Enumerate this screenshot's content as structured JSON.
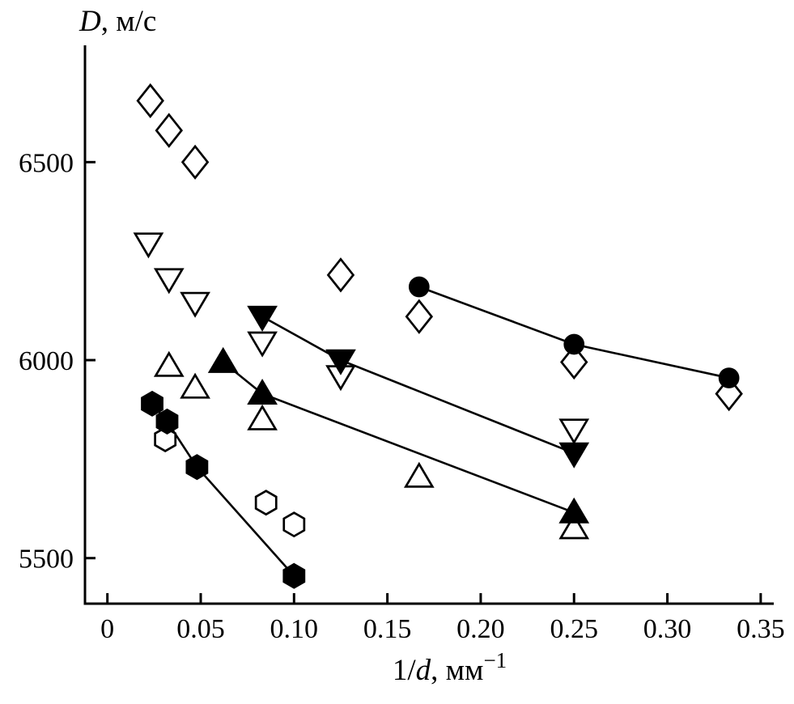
{
  "figure": {
    "background": "#ffffff",
    "ink_color": "#000000"
  },
  "chart_data": {
    "type": "scatter",
    "title": "",
    "xlabel": "1/d, мм⁻¹",
    "ylabel": "D, м/с",
    "xlabel_parts": {
      "pre": "1/",
      "var": "d",
      "rest": ", мм",
      "sup": "−1"
    },
    "ylabel_parts": {
      "var": "D",
      "rest": ", м/с"
    },
    "xlim": [
      -0.012,
      0.357
    ],
    "ylim": [
      5385,
      6795
    ],
    "xticks": [
      0,
      0.05,
      0.1,
      0.15,
      0.2,
      0.25,
      0.3,
      0.35
    ],
    "xtick_labels": [
      "0",
      "0.05",
      "0.10",
      "0.15",
      "0.20",
      "0.25",
      "0.30",
      "0.35"
    ],
    "yticks": [
      5500,
      6000,
      6500
    ],
    "ytick_labels": [
      "5500",
      "6000",
      "6500"
    ],
    "grid": false,
    "legend": "none",
    "series": [
      {
        "name": "open-diamond",
        "marker": "diamond",
        "fill": "open",
        "line": false,
        "points": [
          [
            0.023,
            6655
          ],
          [
            0.033,
            6580
          ],
          [
            0.047,
            6500
          ],
          [
            0.125,
            6215
          ],
          [
            0.167,
            6110
          ],
          [
            0.25,
            5995
          ],
          [
            0.333,
            5915
          ]
        ]
      },
      {
        "name": "open-triangle-down",
        "marker": "triangle-down",
        "fill": "open",
        "line": false,
        "points": [
          [
            0.022,
            6295
          ],
          [
            0.033,
            6205
          ],
          [
            0.047,
            6145
          ],
          [
            0.083,
            6045
          ],
          [
            0.125,
            5960
          ],
          [
            0.25,
            5825
          ]
        ]
      },
      {
        "name": "open-triangle-up",
        "marker": "triangle-up",
        "fill": "open",
        "line": false,
        "points": [
          [
            0.033,
            5985
          ],
          [
            0.047,
            5930
          ],
          [
            0.083,
            5850
          ],
          [
            0.167,
            5705
          ],
          [
            0.25,
            5575
          ]
        ]
      },
      {
        "name": "open-hexagon",
        "marker": "hexagon",
        "fill": "open",
        "line": false,
        "points": [
          [
            0.031,
            5800
          ],
          [
            0.085,
            5640
          ],
          [
            0.1,
            5585
          ]
        ]
      },
      {
        "name": "filled-circle",
        "marker": "circle",
        "fill": "solid",
        "line": true,
        "points": [
          [
            0.167,
            6185
          ],
          [
            0.25,
            6040
          ],
          [
            0.333,
            5955
          ]
        ]
      },
      {
        "name": "filled-triangle-down",
        "marker": "triangle-down",
        "fill": "solid",
        "line": true,
        "points": [
          [
            0.083,
            6110
          ],
          [
            0.125,
            6000
          ],
          [
            0.25,
            5765
          ]
        ]
      },
      {
        "name": "filled-triangle-up",
        "marker": "triangle-up",
        "fill": "solid",
        "line": true,
        "points": [
          [
            0.062,
            5995
          ],
          [
            0.083,
            5915
          ],
          [
            0.25,
            5615
          ]
        ]
      },
      {
        "name": "filled-hexagon",
        "marker": "hexagon",
        "fill": "solid",
        "line": true,
        "points": [
          [
            0.024,
            5890
          ],
          [
            0.032,
            5845
          ],
          [
            0.048,
            5730
          ],
          [
            0.1,
            5455
          ]
        ]
      }
    ]
  }
}
